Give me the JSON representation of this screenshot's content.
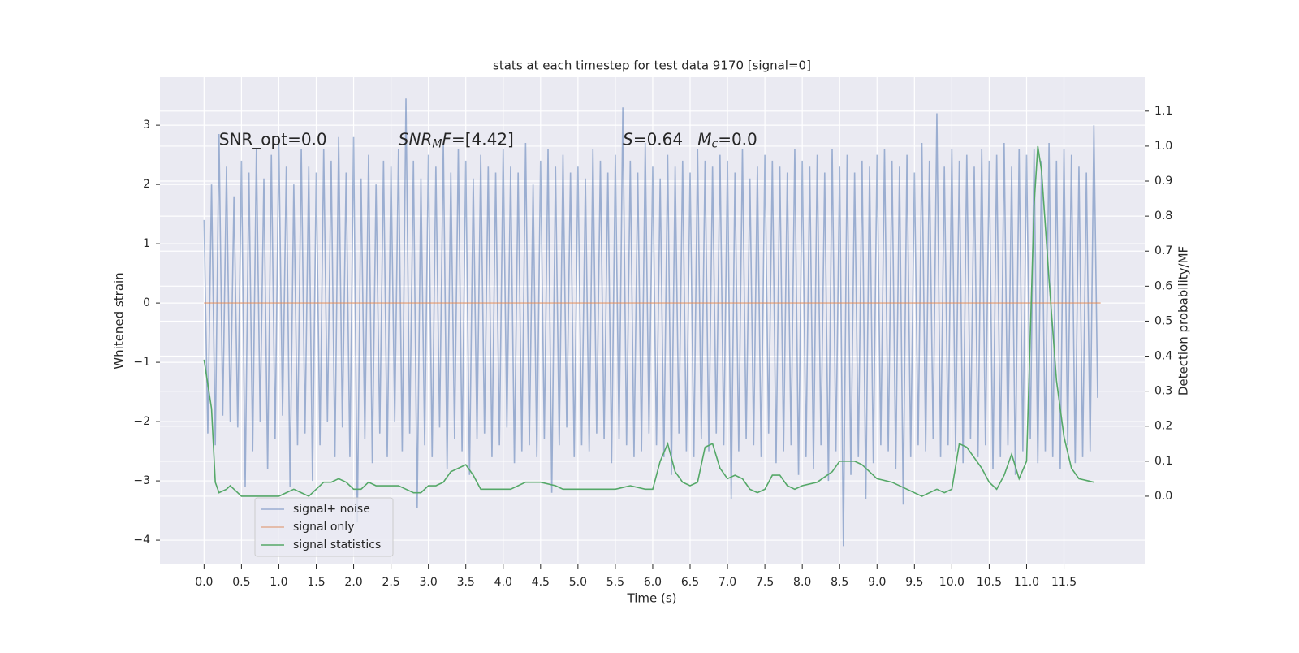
{
  "chart_data": {
    "type": "line",
    "title": "stats at each timestep for test data 9170 [signal=0]",
    "xlabel": "Time (s)",
    "ylabel": "Whitened strain",
    "y2label": "Detection probability/MF",
    "annotations": [
      {
        "text": "SNR_opt=0.0",
        "x": 0.2,
        "y": 2.75
      },
      {
        "base": "SNR",
        "sub": "M",
        "mid": "F",
        "rest": "=[4.42]",
        "x": 2.6,
        "y": 2.75
      },
      {
        "base": "S",
        "rest": "=0.64",
        "x": 5.6,
        "y": 2.75
      },
      {
        "base": "M",
        "sub": "c",
        "rest": "=0.0",
        "x": 6.6,
        "y": 2.75
      }
    ],
    "xlim": [
      -0.59,
      12.58
    ],
    "ylim": [
      -4.41,
      3.81
    ],
    "y2lim": [
      -0.195,
      1.197
    ],
    "xticks": [
      {
        "value": 0,
        "label": "0.0"
      },
      {
        "value": 0.5,
        "label": "0.5"
      },
      {
        "value": 1,
        "label": "1.0"
      },
      {
        "value": 1.5,
        "label": "1.5"
      },
      {
        "value": 2,
        "label": "2.0"
      },
      {
        "value": 2.5,
        "label": "2.5"
      },
      {
        "value": 3,
        "label": "3.0"
      },
      {
        "value": 3.5,
        "label": "3.5"
      },
      {
        "value": 4,
        "label": "4.0"
      },
      {
        "value": 4.5,
        "label": "4.5"
      },
      {
        "value": 5,
        "label": "5.0"
      },
      {
        "value": 5.5,
        "label": "5.5"
      },
      {
        "value": 6,
        "label": "6.0"
      },
      {
        "value": 6.5,
        "label": "6.5"
      },
      {
        "value": 7,
        "label": "7.0"
      },
      {
        "value": 7.5,
        "label": "7.5"
      },
      {
        "value": 8,
        "label": "8.0"
      },
      {
        "value": 8.5,
        "label": "8.5"
      },
      {
        "value": 9,
        "label": "9.0"
      },
      {
        "value": 9.5,
        "label": "9.5"
      },
      {
        "value": 10,
        "label": "10.0"
      },
      {
        "value": 10.5,
        "label": "10.5"
      },
      {
        "value": 11,
        "label": "11.0"
      },
      {
        "value": 11.5,
        "label": "11.5"
      }
    ],
    "yticks": [
      {
        "value": -4,
        "label": "−4"
      },
      {
        "value": -3,
        "label": "−3"
      },
      {
        "value": -2,
        "label": "−2"
      },
      {
        "value": -1,
        "label": "−1"
      },
      0,
      1,
      2,
      3
    ],
    "y2ticks": [
      {
        "value": 0,
        "label": "0.0"
      },
      {
        "value": 0.1,
        "label": "0.1"
      },
      {
        "value": 0.2,
        "label": "0.2"
      },
      {
        "value": 0.3,
        "label": "0.3"
      },
      {
        "value": 0.4,
        "label": "0.4"
      },
      {
        "value": 0.5,
        "label": "0.5"
      },
      {
        "value": 0.6,
        "label": "0.6"
      },
      {
        "value": 0.7,
        "label": "0.7"
      },
      {
        "value": 0.8,
        "label": "0.8"
      },
      {
        "value": 0.9,
        "label": "0.9"
      },
      {
        "value": 1.0,
        "label": "1.0"
      },
      {
        "value": 1.1,
        "label": "1.1"
      }
    ],
    "grid": true,
    "legend_loc": "lower left",
    "series": [
      {
        "name": "signal+ noise",
        "color": "#4c72b0",
        "opacity": 0.5,
        "x": [
          0,
          0.05,
          0.1,
          0.15,
          0.2,
          0.25,
          0.3,
          0.35,
          0.4,
          0.45,
          0.5,
          0.55,
          0.6,
          0.65,
          0.7,
          0.75,
          0.8,
          0.85,
          0.9,
          0.95,
          1,
          1.05,
          1.1,
          1.15,
          1.2,
          1.25,
          1.3,
          1.35,
          1.4,
          1.45,
          1.5,
          1.55,
          1.6,
          1.65,
          1.7,
          1.75,
          1.8,
          1.85,
          1.9,
          1.95,
          2,
          2.05,
          2.1,
          2.15,
          2.2,
          2.25,
          2.3,
          2.35,
          2.4,
          2.45,
          2.5,
          2.55,
          2.6,
          2.65,
          2.7,
          2.75,
          2.8,
          2.85,
          2.9,
          2.95,
          3,
          3.05,
          3.1,
          3.15,
          3.2,
          3.25,
          3.3,
          3.35,
          3.4,
          3.45,
          3.5,
          3.55,
          3.6,
          3.65,
          3.7,
          3.75,
          3.8,
          3.85,
          3.9,
          3.95,
          4,
          4.05,
          4.1,
          4.15,
          4.2,
          4.25,
          4.3,
          4.35,
          4.4,
          4.45,
          4.5,
          4.55,
          4.6,
          4.65,
          4.7,
          4.75,
          4.8,
          4.85,
          4.9,
          4.95,
          5,
          5.05,
          5.1,
          5.15,
          5.2,
          5.25,
          5.3,
          5.35,
          5.4,
          5.45,
          5.5,
          5.55,
          5.6,
          5.65,
          5.7,
          5.75,
          5.8,
          5.85,
          5.9,
          5.95,
          6,
          6.05,
          6.1,
          6.15,
          6.2,
          6.25,
          6.3,
          6.35,
          6.4,
          6.45,
          6.5,
          6.55,
          6.6,
          6.65,
          6.7,
          6.75,
          6.8,
          6.85,
          6.9,
          6.95,
          7,
          7.05,
          7.1,
          7.15,
          7.2,
          7.25,
          7.3,
          7.35,
          7.4,
          7.45,
          7.5,
          7.55,
          7.6,
          7.65,
          7.7,
          7.75,
          7.8,
          7.85,
          7.9,
          7.95,
          8,
          8.05,
          8.1,
          8.15,
          8.2,
          8.25,
          8.3,
          8.35,
          8.4,
          8.45,
          8.5,
          8.55,
          8.6,
          8.65,
          8.7,
          8.75,
          8.8,
          8.85,
          8.9,
          8.95,
          9,
          9.05,
          9.1,
          9.15,
          9.2,
          9.25,
          9.3,
          9.35,
          9.4,
          9.45,
          9.5,
          9.55,
          9.6,
          9.65,
          9.7,
          9.75,
          9.8,
          9.85,
          9.9,
          9.95,
          10,
          10.05,
          10.1,
          10.15,
          10.2,
          10.25,
          10.3,
          10.35,
          10.4,
          10.45,
          10.5,
          10.55,
          10.6,
          10.65,
          10.7,
          10.75,
          10.8,
          10.85,
          10.9,
          10.95,
          11,
          11.05,
          11.1,
          11.15,
          11.2,
          11.25,
          11.3,
          11.35,
          11.4,
          11.45,
          11.5,
          11.55,
          11.6,
          11.65,
          11.7,
          11.75,
          11.8,
          11.85,
          11.9,
          11.95
        ],
        "values": [
          1.4,
          -2.2,
          2.0,
          -2.4,
          2.85,
          -1.9,
          2.3,
          -2.0,
          1.8,
          -2.1,
          2.4,
          -3.1,
          2.2,
          -2.5,
          2.6,
          -2.0,
          2.1,
          -2.8,
          2.5,
          -2.3,
          2.7,
          -1.9,
          2.3,
          -3.1,
          2.0,
          -2.4,
          2.6,
          -2.2,
          2.3,
          -3.0,
          2.2,
          -2.4,
          2.6,
          -2.0,
          2.4,
          -2.6,
          2.8,
          -2.1,
          2.2,
          -2.6,
          2.8,
          -3.7,
          2.1,
          -2.3,
          2.5,
          -2.7,
          2.0,
          -2.2,
          2.4,
          -2.6,
          2.3,
          -2.0,
          2.6,
          -2.5,
          3.45,
          -2.2,
          2.4,
          -3.45,
          2.1,
          -2.4,
          2.5,
          -2.6,
          2.3,
          -2.1,
          2.7,
          -2.8,
          2.2,
          -2.3,
          2.6,
          -2.5,
          2.4,
          -2.9,
          2.1,
          -2.3,
          2.5,
          -2.2,
          2.3,
          -2.6,
          2.2,
          -2.4,
          2.6,
          -2.1,
          2.3,
          -2.7,
          2.2,
          -2.5,
          2.7,
          -2.4,
          2.0,
          -2.6,
          2.4,
          -2.3,
          2.6,
          -3.2,
          2.3,
          -2.4,
          2.5,
          -2.1,
          2.2,
          -2.6,
          2.3,
          -2.4,
          2.1,
          -2.5,
          2.6,
          -2.2,
          2.4,
          -2.3,
          2.2,
          -2.7,
          2.5,
          -2.3,
          3.3,
          -2.4,
          2.4,
          -2.6,
          2.2,
          -2.5,
          2.7,
          -2.2,
          2.3,
          -2.4,
          2.1,
          -2.6,
          2.5,
          -2.9,
          2.3,
          -2.2,
          2.4,
          -2.5,
          2.2,
          -2.6,
          2.6,
          -2.3,
          2.4,
          -2.5,
          2.3,
          -2.2,
          2.5,
          -2.4,
          2.4,
          -3.3,
          2.2,
          -2.5,
          2.6,
          -2.3,
          2.1,
          -2.4,
          2.3,
          -2.6,
          2.5,
          -2.2,
          2.4,
          -2.7,
          2.3,
          -2.5,
          2.2,
          -2.4,
          2.6,
          -2.9,
          2.4,
          -2.6,
          2.3,
          -2.8,
          2.5,
          -2.4,
          2.2,
          -3.0,
          2.6,
          -2.5,
          2.3,
          -4.1,
          2.5,
          -2.9,
          2.2,
          -2.6,
          2.4,
          -3.3,
          2.3,
          -2.7,
          2.5,
          -2.4,
          2.6,
          -2.5,
          2.4,
          -2.8,
          2.3,
          -3.4,
          2.5,
          -2.6,
          2.2,
          -2.4,
          2.7,
          -2.5,
          2.4,
          -2.3,
          3.2,
          -2.6,
          2.3,
          -2.4,
          2.6,
          -2.5,
          2.4,
          -2.7,
          2.5,
          -2.3,
          2.3,
          -2.6,
          2.6,
          -2.4,
          2.4,
          -2.8,
          2.5,
          -2.6,
          2.7,
          -2.4,
          2.3,
          -2.9,
          2.6,
          -2.5,
          2.5,
          -2.3,
          2.6,
          -2.7,
          2.4,
          -2.5,
          2.7,
          -2.6,
          2.4,
          -2.8,
          2.6,
          -2.4,
          2.5,
          -2.7,
          2.3,
          -2.6,
          2.2,
          -2.5,
          3.0,
          -1.6
        ]
      },
      {
        "name": "signal only",
        "color": "#dd8452",
        "opacity": 0.6,
        "x": [
          0,
          11.99
        ],
        "values": [
          0,
          0
        ]
      },
      {
        "name": "signal statistics",
        "color": "#55a868",
        "opacity": 1,
        "axis": "y2",
        "x": [
          0,
          0.1,
          0.15,
          0.2,
          0.3,
          0.35,
          0.4,
          0.5,
          0.6,
          0.7,
          0.8,
          0.9,
          1,
          1.1,
          1.2,
          1.3,
          1.4,
          1.5,
          1.6,
          1.7,
          1.8,
          1.9,
          2,
          2.1,
          2.2,
          2.3,
          2.5,
          2.6,
          2.7,
          2.8,
          2.9,
          3,
          3.1,
          3.2,
          3.3,
          3.4,
          3.5,
          3.6,
          3.7,
          3.8,
          4,
          4.1,
          4.3,
          4.5,
          4.7,
          4.8,
          5,
          5.1,
          5.3,
          5.5,
          5.7,
          5.9,
          6,
          6.1,
          6.2,
          6.3,
          6.4,
          6.5,
          6.6,
          6.7,
          6.8,
          6.9,
          7,
          7.1,
          7.2,
          7.3,
          7.4,
          7.5,
          7.6,
          7.7,
          7.8,
          7.9,
          8,
          8.2,
          8.4,
          8.5,
          8.6,
          8.7,
          8.8,
          8.9,
          9,
          9.2,
          9.4,
          9.6,
          9.8,
          9.9,
          10,
          10.1,
          10.2,
          10.3,
          10.4,
          10.5,
          10.6,
          10.7,
          10.8,
          10.9,
          11,
          11.1,
          11.15,
          11.2,
          11.3,
          11.4,
          11.5,
          11.6,
          11.7,
          11.9
        ],
        "values": [
          0.39,
          0.25,
          0.04,
          0.01,
          0.02,
          0.03,
          0.02,
          0,
          0,
          0,
          0,
          0,
          0,
          0.01,
          0.02,
          0.01,
          0,
          0.02,
          0.04,
          0.04,
          0.05,
          0.04,
          0.02,
          0.02,
          0.04,
          0.03,
          0.03,
          0.03,
          0.02,
          0.01,
          0.01,
          0.03,
          0.03,
          0.04,
          0.07,
          0.08,
          0.09,
          0.06,
          0.02,
          0.02,
          0.02,
          0.02,
          0.04,
          0.04,
          0.03,
          0.02,
          0.02,
          0.02,
          0.02,
          0.02,
          0.03,
          0.02,
          0.02,
          0.1,
          0.15,
          0.07,
          0.04,
          0.03,
          0.04,
          0.14,
          0.15,
          0.08,
          0.05,
          0.06,
          0.05,
          0.02,
          0.01,
          0.02,
          0.06,
          0.06,
          0.03,
          0.02,
          0.03,
          0.04,
          0.07,
          0.1,
          0.1,
          0.1,
          0.09,
          0.07,
          0.05,
          0.04,
          0.02,
          0,
          0.02,
          0.01,
          0.02,
          0.15,
          0.14,
          0.11,
          0.08,
          0.04,
          0.02,
          0.06,
          0.12,
          0.05,
          0.1,
          0.83,
          1.0,
          0.93,
          0.62,
          0.33,
          0.17,
          0.08,
          0.05,
          0.04
        ]
      }
    ]
  }
}
